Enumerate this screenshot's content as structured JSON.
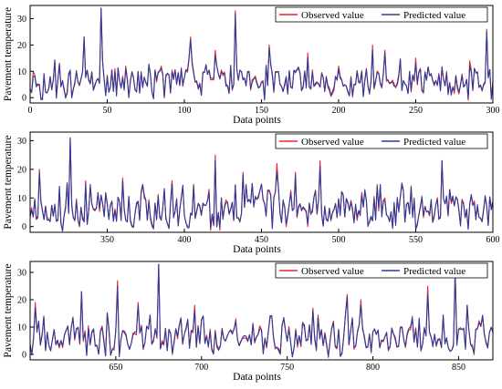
{
  "chart_data": [
    {
      "type": "line",
      "xlabel": "Data points",
      "ylabel": "Pavement temperature",
      "xlim": [
        0,
        300
      ],
      "ylim": [
        -2,
        35
      ],
      "xticks": [
        0,
        50,
        100,
        150,
        200,
        250,
        300
      ],
      "yticks": [
        0,
        10,
        20,
        30
      ],
      "legend_position": "top-right",
      "series": [
        {
          "name": "Observed value",
          "color": "#e8262d",
          "seed": 11,
          "spikes": [
            [
              2,
              10
            ],
            [
              35,
              23
            ],
            [
              46,
              34
            ],
            [
              55,
              11
            ],
            [
              62,
              12
            ],
            [
              85,
              12
            ],
            [
              104,
              23
            ],
            [
              120,
              18
            ],
            [
              133,
              33
            ],
            [
              155,
              20
            ],
            [
              180,
              17
            ],
            [
              200,
              12
            ],
            [
              222,
              20
            ],
            [
              230,
              18
            ],
            [
              250,
              15
            ],
            [
              270,
              10
            ],
            [
              285,
              14
            ],
            [
              296,
              26
            ]
          ]
        },
        {
          "name": "Predicted value",
          "color": "#2b3a9b",
          "seed": 11,
          "spikes": [
            [
              2,
              8
            ],
            [
              35,
              23
            ],
            [
              46,
              34
            ],
            [
              55,
              10
            ],
            [
              62,
              11
            ],
            [
              85,
              11
            ],
            [
              104,
              22
            ],
            [
              120,
              16
            ],
            [
              133,
              32
            ],
            [
              155,
              19
            ],
            [
              180,
              15
            ],
            [
              200,
              11
            ],
            [
              222,
              18
            ],
            [
              230,
              17
            ],
            [
              250,
              13
            ],
            [
              270,
              9
            ],
            [
              285,
              12
            ],
            [
              296,
              25
            ]
          ]
        }
      ]
    },
    {
      "type": "line",
      "xlabel": "Data points",
      "ylabel": "Pavement temperature",
      "xlim": [
        300,
        600
      ],
      "ylim": [
        -2,
        33
      ],
      "xticks": [
        350,
        400,
        450,
        500,
        550,
        600
      ],
      "yticks": [
        0,
        10,
        20,
        30
      ],
      "legend_position": "top-right",
      "series": [
        {
          "name": "Observed value",
          "color": "#e8262d",
          "seed": 23,
          "spikes": [
            [
              306,
              20
            ],
            [
              326,
              31
            ],
            [
              336,
              16
            ],
            [
              360,
              17
            ],
            [
              392,
              16
            ],
            [
              420,
              25
            ],
            [
              438,
              19
            ],
            [
              460,
              22
            ],
            [
              472,
              19
            ],
            [
              488,
              23
            ],
            [
              515,
              12
            ],
            [
              530,
              10
            ],
            [
              567,
              23
            ],
            [
              588,
              9
            ]
          ]
        },
        {
          "name": "Predicted value",
          "color": "#2b3a9b",
          "seed": 23,
          "spikes": [
            [
              306,
              19
            ],
            [
              326,
              31
            ],
            [
              336,
              15
            ],
            [
              360,
              16
            ],
            [
              392,
              15
            ],
            [
              420,
              23
            ],
            [
              438,
              18
            ],
            [
              460,
              19
            ],
            [
              472,
              18
            ],
            [
              488,
              21
            ],
            [
              515,
              11
            ],
            [
              530,
              9
            ],
            [
              567,
              23
            ],
            [
              588,
              8
            ]
          ]
        }
      ]
    },
    {
      "type": "line",
      "xlabel": "Data points",
      "ylabel": "Pavement temperature",
      "xlim": [
        600,
        870
      ],
      "ylim": [
        -2,
        34
      ],
      "xticks": [
        650,
        700,
        750,
        800,
        850
      ],
      "yticks": [
        0,
        10,
        20,
        30
      ],
      "legend_position": "top-right",
      "series": [
        {
          "name": "Observed value",
          "color": "#e8262d",
          "seed": 37,
          "spikes": [
            [
              603,
              19
            ],
            [
              630,
              23
            ],
            [
              651,
              27
            ],
            [
              663,
              19
            ],
            [
              675,
              33
            ],
            [
              696,
              18
            ],
            [
              720,
              13
            ],
            [
              765,
              17
            ],
            [
              785,
              22
            ],
            [
              793,
              20
            ],
            [
              832,
              25
            ],
            [
              848,
              30
            ],
            [
              855,
              18
            ]
          ]
        },
        {
          "name": "Predicted value",
          "color": "#2b3a9b",
          "seed": 37,
          "spikes": [
            [
              603,
              17
            ],
            [
              630,
              23
            ],
            [
              651,
              25
            ],
            [
              663,
              18
            ],
            [
              675,
              33
            ],
            [
              696,
              16
            ],
            [
              720,
              12
            ],
            [
              765,
              16
            ],
            [
              785,
              21
            ],
            [
              793,
              18
            ],
            [
              832,
              22
            ],
            [
              848,
              31
            ],
            [
              855,
              18
            ]
          ]
        }
      ]
    }
  ]
}
